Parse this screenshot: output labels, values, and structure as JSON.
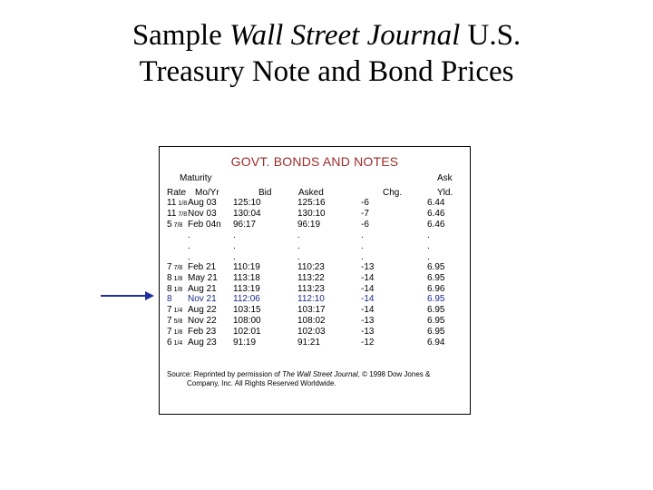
{
  "slide": {
    "title_prefix": "Sample ",
    "title_italic": "Wall Street Journal",
    "title_suffix": "  U.S.",
    "title_line2": "Treasury Note and Bond Prices"
  },
  "table": {
    "heading": "GOVT. BONDS AND NOTES",
    "headers": {
      "maturity": "Maturity",
      "ask_top": "Ask",
      "rate": "Rate",
      "moyr": "Mo/Yr",
      "bid": "Bid",
      "asked": "Asked",
      "chg": "Chg.",
      "yld": "Yld."
    },
    "top_rows": [
      {
        "rate": "11",
        "frac": "1/8",
        "moyr": "Aug 03",
        "bid": "125:10",
        "asked": "125:16",
        "chg": "-6",
        "yld": "6.44"
      },
      {
        "rate": "11",
        "frac": "7/8",
        "moyr": "Nov 03",
        "bid": "130:04",
        "asked": "130:10",
        "chg": "-7",
        "yld": "6.46"
      },
      {
        "rate": "5",
        "frac": "7/8",
        "moyr": "Feb 04n",
        "bid": "96:17",
        "asked": "96:19",
        "chg": "-6",
        "yld": "6.46"
      }
    ],
    "ellipsis": ".",
    "bottom_rows": [
      {
        "rate": "7",
        "frac": "7/8",
        "moyr": "Feb 21",
        "bid": "110:19",
        "asked": "110:23",
        "chg": "-13",
        "yld": "6.95"
      },
      {
        "rate": "8",
        "frac": "1/8",
        "moyr": "May 21",
        "bid": "113:18",
        "asked": "113:22",
        "chg": "-14",
        "yld": "6.95"
      },
      {
        "rate": "8",
        "frac": "1/8",
        "moyr": "Aug 21",
        "bid": "113:19",
        "asked": "113:23",
        "chg": "-14",
        "yld": "6.96"
      },
      {
        "rate": "8",
        "frac": "",
        "moyr": "Nov 21",
        "bid": "112:06",
        "asked": "112:10",
        "chg": "-14",
        "yld": "6.95",
        "highlight": true
      },
      {
        "rate": "7",
        "frac": "1/4",
        "moyr": "Aug 22",
        "bid": "103:15",
        "asked": "103:17",
        "chg": "-14",
        "yld": "6.95"
      },
      {
        "rate": "7",
        "frac": "5/8",
        "moyr": "Nov 22",
        "bid": "108:00",
        "asked": "108:02",
        "chg": "-13",
        "yld": "6.95"
      },
      {
        "rate": "7",
        "frac": "1/8",
        "moyr": "Feb 23",
        "bid": "102:01",
        "asked": "102:03",
        "chg": "-13",
        "yld": "6.95"
      },
      {
        "rate": "6",
        "frac": "1/4",
        "moyr": "Aug 23",
        "bid": "91:19",
        "asked": "91:21",
        "chg": "-12",
        "yld": "6.94"
      }
    ],
    "source_prefix": "Source: Reprinted by permission of ",
    "source_italic": "The Wall Street Journal",
    "source_suffix": ", © 1998 Dow Jones &",
    "source_line2": "Company, Inc. All Rights Reserved Worldwide."
  },
  "colors": {
    "heading": "#9b2a2a",
    "highlight_row": "#1a2a8a",
    "arrow": "#1f2f9e"
  }
}
